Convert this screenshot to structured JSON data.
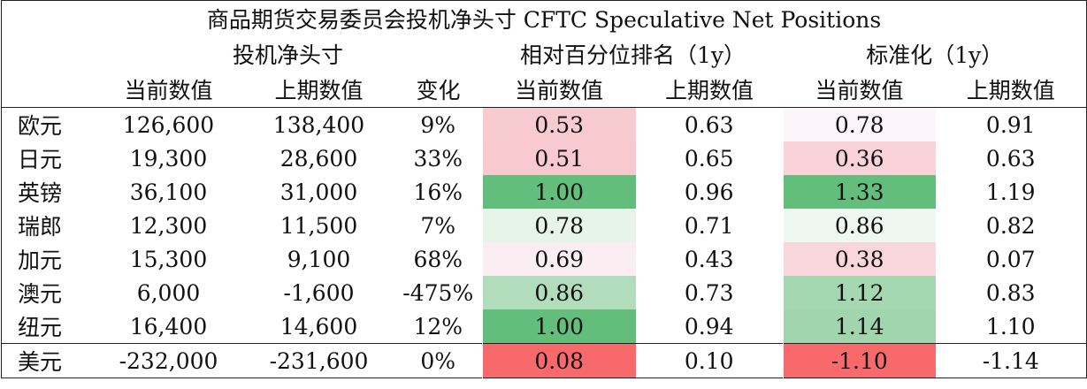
{
  "title": "商品期货交易委员会投机净头寸 CFTC Speculative Net Positions",
  "group_headers": [
    "投机净头寸",
    "相对百分位排名（1y）",
    "标准化（1y）"
  ],
  "columns": [
    "当前数值",
    "上期数值",
    "变化",
    "当前数值",
    "上期数值",
    "当前数值",
    "上期数值"
  ],
  "rows": [
    {
      "label": "欧元",
      "cells": [
        "126,600",
        "138,400",
        "9%",
        "0.53",
        "0.63",
        "0.78",
        "0.91"
      ],
      "fills": [
        "#f8cbd0",
        "#fcf6fa"
      ]
    },
    {
      "label": "日元",
      "cells": [
        "19,300",
        "28,600",
        "33%",
        "0.51",
        "0.65",
        "0.36",
        "0.63"
      ],
      "fills": [
        "#f8c9ce",
        "#f9d3d8"
      ]
    },
    {
      "label": "英镑",
      "cells": [
        "36,100",
        "31,000",
        "16%",
        "1.00",
        "0.96",
        "1.33",
        "1.19"
      ],
      "fills": [
        "#63be7b",
        "#63be7b"
      ]
    },
    {
      "label": "瑞郎",
      "cells": [
        "12,300",
        "11,500",
        "7%",
        "0.78",
        "0.71",
        "0.86",
        "0.82"
      ],
      "fills": [
        "#e7f4ea",
        "#eef7f1"
      ]
    },
    {
      "label": "加元",
      "cells": [
        "15,300",
        "9,100",
        "68%",
        "0.69",
        "0.43",
        "0.38",
        "0.07"
      ],
      "fills": [
        "#fbeef2",
        "#f9d6db"
      ]
    },
    {
      "label": "澳元",
      "cells": [
        "6,000",
        "-1,600",
        "-475%",
        "0.86",
        "0.73",
        "1.12",
        "0.83"
      ],
      "fills": [
        "#b2ddbd",
        "#a5d7b1"
      ]
    },
    {
      "label": "纽元",
      "cells": [
        "16,400",
        "14,600",
        "12%",
        "1.00",
        "0.94",
        "1.14",
        "1.10"
      ],
      "fills": [
        "#63be7b",
        "#a1d5ae"
      ]
    },
    {
      "label": "美元",
      "cells": [
        "-232,000",
        "-231,600",
        "0%",
        "0.08",
        "0.10",
        "-1.10",
        "-1.14"
      ],
      "fills": [
        "#f8696b",
        "#f8696b"
      ]
    }
  ]
}
